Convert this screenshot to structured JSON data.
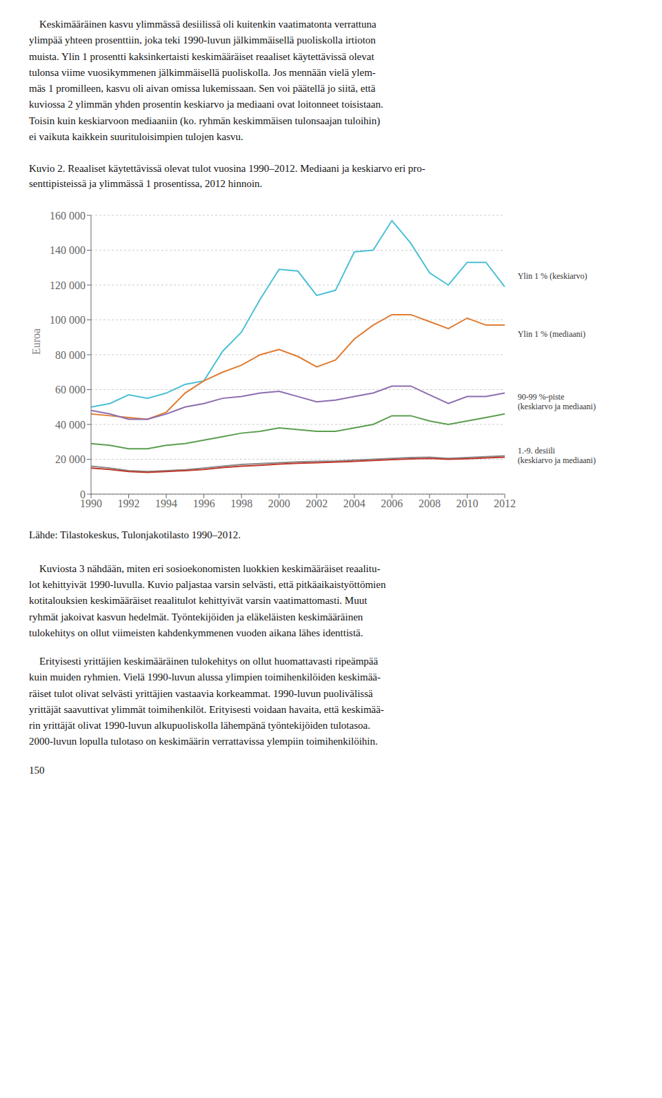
{
  "text_above": [
    "    Keskimääräinen kasvu ylimmässä desiilissä oli kuitenkin vaatimatonta verrattuna\nylimpää yhteen prosenttiin, joka teki 1990-luvun jälkimmäisellä puoliskolla irtioton\nmuista. Ylin 1 prosentti kaksinkertaisti keskimääräiset reaaliset käytettävissä olevat\ntulonsa viime vuosikymmenen jälkimmäisellä puoliskolla. Jos mennään vielä ylem-\nmäs 1 promilleen, kasvu oli aivan omissa lukemissaan. Sen voi päätellä jo siitä, että\nkuviossa 2 ylimmän yhden prosentin keskiarvo ja mediaani ovat loitonneet toisistaan.\nToisin kuin keskiarvoon mediaaniin (ko. ryhmän keskimmäisen tulonsaajan tuloihin)\nei vaikuta kaikkein suurituloisimpien tulojen kasvu."
  ],
  "chart_data": {
    "type": "line",
    "title": "Kuvio 2. Reaaliset käytettävissä olevat tulot vuosina 1990–2012. Mediaani ja keskiarvo eri pro-\nsenttipisteissä ja ylimmässä 1 prosentissa, 2012 hinnoin.",
    "ylabel": "Euroa",
    "x": [
      1990,
      1991,
      1992,
      1993,
      1994,
      1995,
      1996,
      1997,
      1998,
      1999,
      2000,
      2001,
      2002,
      2003,
      2004,
      2005,
      2006,
      2007,
      2008,
      2009,
      2010,
      2011,
      2012
    ],
    "series": [
      {
        "color": "#4bbfd6",
        "values": [
          50000,
          52000,
          57000,
          55000,
          58000,
          63000,
          65000,
          82000,
          93000,
          112000,
          129000,
          128000,
          114000,
          117000,
          139000,
          140000,
          157000,
          144000,
          127000,
          120000,
          133000,
          133000,
          119000
        ]
      },
      {
        "color": "#e07b30",
        "values": [
          46000,
          45000,
          44000,
          43000,
          47000,
          58000,
          65000,
          70000,
          74000,
          80000,
          83000,
          79000,
          73000,
          77000,
          89000,
          97000,
          103000,
          103000,
          99000,
          95000,
          101000,
          97000,
          97000
        ]
      },
      {
        "color": "#8b6db0",
        "values": [
          48000,
          46000,
          43000,
          43000,
          46000,
          50000,
          52000,
          55000,
          56000,
          58000,
          59000,
          56000,
          53000,
          54000,
          56000,
          58000,
          62000,
          62000,
          57000,
          52000,
          56000,
          56000,
          58000
        ]
      },
      {
        "color": "#5a9e4e",
        "values": [
          29000,
          28000,
          26000,
          26000,
          28000,
          29000,
          31000,
          33000,
          35000,
          36000,
          38000,
          37000,
          36000,
          36000,
          38000,
          40000,
          45000,
          45000,
          42000,
          40000,
          42000,
          44000,
          46000
        ]
      },
      {
        "color": "#888888",
        "values": [
          16000,
          15000,
          13500,
          13000,
          13500,
          14000,
          15000,
          16000,
          17000,
          17500,
          18000,
          18500,
          18800,
          19000,
          19500,
          20000,
          20500,
          21000,
          21200,
          20500,
          21000,
          21500,
          22000
        ]
      },
      {
        "color": "#c0392b",
        "values": [
          15000,
          14200,
          13000,
          12500,
          13000,
          13500,
          14200,
          15200,
          16000,
          16500,
          17200,
          17700,
          18000,
          18400,
          18800,
          19300,
          19800,
          20200,
          20500,
          20000,
          20300,
          20800,
          21200
        ]
      }
    ],
    "xlim": [
      1990,
      2012
    ],
    "xticks": [
      1990,
      1992,
      1994,
      1996,
      1998,
      2000,
      2002,
      2004,
      2006,
      2008,
      2010,
      2012
    ],
    "ylim": [
      0,
      160000
    ],
    "yticks": [
      0,
      {
        "value": 20000,
        "label": "20 000"
      },
      {
        "value": 40000,
        "label": "40 000"
      },
      {
        "value": 60000,
        "label": "60 000"
      },
      {
        "value": 80000,
        "label": "80 000"
      },
      {
        "value": 100000,
        "label": "100 000"
      },
      {
        "value": 120000,
        "label": "120 000"
      },
      {
        "value": 140000,
        "label": "140 000"
      },
      {
        "value": 160000,
        "label": "160 000"
      }
    ],
    "grid": true,
    "annotations": [
      {
        "text": "Ylin 1 % (keskiarvo)",
        "x": 2012.5,
        "y": 125000
      },
      {
        "text": "Ylin 1 % (mediaani)",
        "x": 2012.5,
        "y": 92000
      },
      {
        "text": "90-99 %-piste\n(keskiarvo ja mediaani)",
        "x": 2012.5,
        "y": 53000
      },
      {
        "text": "1.-9. desiili\n(keskiarvo ja mediaani)",
        "x": 2012.5,
        "y": 22000
      }
    ]
  },
  "text_below": [
    "Lähde: Tilastokeskus, Tulonjakotilasto 1990–2012.",
    "    Kuviosta 3 nähdään, miten eri sosioekonomisten luokkien keskimääräiset reaalitu-\nlot kehittyivät 1990-luvulla. Kuvio paljastaa varsin selvästi, että pitkäaikaistyöttömien\nkotitalouksien keskimääräiset reaalitulot kehittyivät varsin vaatimattomasti. Muut\nryhmät jakoivat kasvun hedelmät. Työntekijöiden ja eläkeläisten keskimääräinen\ntulokehitys on ollut viimeisten kahdenkymmenen vuoden aikana lähes identtistä.",
    "    Erityisesti yrittäjien keskimääräinen tulokehitys on ollut huomattavasti ripeämpää\nkuin muiden ryhmien. Vielä 1990-luvun alussa ylimpien toimihenkilöiden keskimää-\nräiset tulot olivat selvästi yrittäjien vastaavia korkeammat. 1990-luvun puolivälissä\nyrittäjät saavuttivat ylimmät toimihenkilöt. Erityisesti voidaan havaita, että keskimää-\nrin yrittäjät olivat 1990-luvun alkupuoliskolla lähempänä työntekijöiden tulotasoa.\n2000-luvun lopulla tulotaso on keskimäärin verrattavissa ylempiin toimihenkilöihin.",
    "150"
  ]
}
